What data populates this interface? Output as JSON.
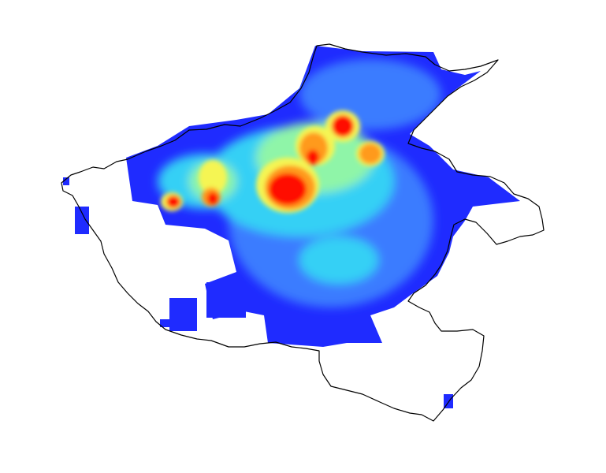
{
  "map": {
    "type": "heatmap-over-region-outline",
    "background": "#ffffff",
    "outline_color": "#000000",
    "colormap": [
      "#1f2bff",
      "#3a7bff",
      "#35d0f5",
      "#8ff5a8",
      "#f5f552",
      "#ff9a1a",
      "#ff3000",
      "#ff0000"
    ],
    "legend": null,
    "title": ""
  }
}
